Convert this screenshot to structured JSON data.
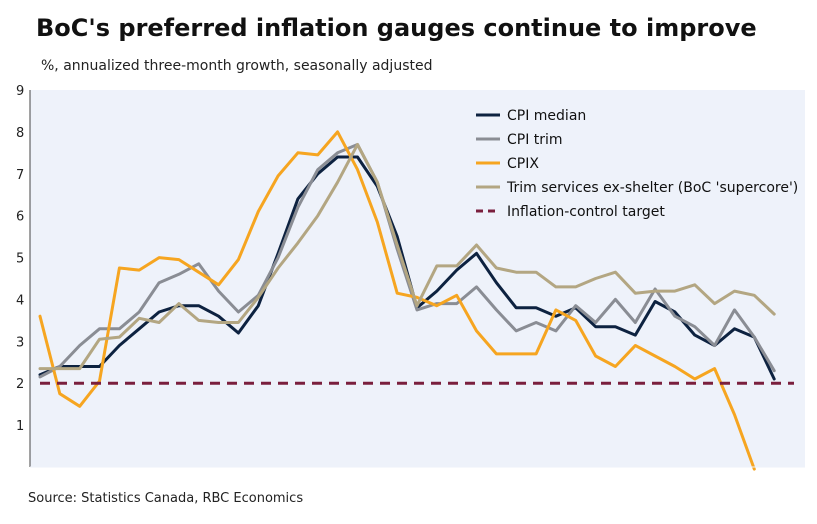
{
  "header": {
    "title": "BoC's preferred inflation gauges continue to improve",
    "subtitle": "%, annualized three-month growth, seasonally adjusted"
  },
  "footer": {
    "source": "Source: Statistics Canada, RBC Economics"
  },
  "chart_data": {
    "type": "line",
    "title": "BoC's preferred inflation gauges continue to improve",
    "ylabel": "%, annualized three-month growth, seasonally adjusted",
    "xlabel": "",
    "ylim": [
      0,
      9
    ],
    "yticks": [
      "1",
      "2",
      "3",
      "4",
      "5",
      "6",
      "7",
      "8",
      "9"
    ],
    "ytick_values": [
      1,
      2,
      3,
      4,
      5,
      6,
      7,
      8,
      9
    ],
    "x_count": 39,
    "background": "#eef2fa",
    "legend_position": "top-right",
    "series": [
      {
        "name": "CPI median",
        "color": "#0d2240",
        "dash": false,
        "values": [
          2.2,
          2.4,
          2.4,
          2.4,
          2.9,
          3.3,
          3.7,
          3.85,
          3.85,
          3.6,
          3.2,
          3.85,
          5.1,
          6.4,
          7.0,
          7.4,
          7.4,
          6.7,
          5.5,
          3.8,
          4.2,
          4.7,
          5.1,
          4.4,
          3.8,
          3.8,
          3.6,
          3.8,
          3.35,
          3.35,
          3.15,
          3.95,
          3.7,
          3.15,
          2.9,
          3.3,
          3.1,
          2.1
        ]
      },
      {
        "name": "CPI trim",
        "color": "#8a8d94",
        "dash": false,
        "values": [
          2.15,
          2.4,
          2.9,
          3.3,
          3.3,
          3.7,
          4.4,
          4.6,
          4.85,
          4.2,
          3.7,
          4.1,
          5.0,
          6.2,
          7.1,
          7.5,
          7.7,
          6.8,
          5.2,
          3.75,
          3.9,
          3.9,
          4.3,
          3.75,
          3.25,
          3.45,
          3.25,
          3.85,
          3.45,
          4.0,
          3.45,
          4.25,
          3.6,
          3.35,
          2.9,
          3.75,
          3.1,
          2.3
        ]
      },
      {
        "name": "CPIX",
        "color": "#f6a520",
        "dash": false,
        "values": [
          3.6,
          1.75,
          1.45,
          2.05,
          4.75,
          4.7,
          5.0,
          4.95,
          4.65,
          4.35,
          4.95,
          6.1,
          6.95,
          7.5,
          7.45,
          8.0,
          7.1,
          5.85,
          4.15,
          4.05,
          3.85,
          4.1,
          3.25,
          2.7,
          2.7,
          2.7,
          3.75,
          3.5,
          2.65,
          2.4,
          2.9,
          2.65,
          2.4,
          2.1,
          2.35,
          1.25,
          -0.05
        ]
      },
      {
        "name": "Trim services ex-shelter (BoC 'supercore')",
        "color": "#b3a682",
        "dash": false,
        "values": [
          2.35,
          2.35,
          2.35,
          3.05,
          3.1,
          3.55,
          3.45,
          3.9,
          3.5,
          3.45,
          3.45,
          4.05,
          4.75,
          5.35,
          6.0,
          6.8,
          7.7,
          6.8,
          5.3,
          3.85,
          4.8,
          4.8,
          5.3,
          4.75,
          4.65,
          4.65,
          4.3,
          4.3,
          4.5,
          4.65,
          4.15,
          4.2,
          4.2,
          4.35,
          3.9,
          4.2,
          4.1,
          3.65
        ]
      },
      {
        "name": "Inflation-control target",
        "color": "#7a1f3d",
        "dash": true,
        "values": [
          2,
          2,
          2,
          2,
          2,
          2,
          2,
          2,
          2,
          2,
          2,
          2,
          2,
          2,
          2,
          2,
          2,
          2,
          2,
          2,
          2,
          2,
          2,
          2,
          2,
          2,
          2,
          2,
          2,
          2,
          2,
          2,
          2,
          2,
          2,
          2,
          2,
          2
        ]
      }
    ]
  }
}
